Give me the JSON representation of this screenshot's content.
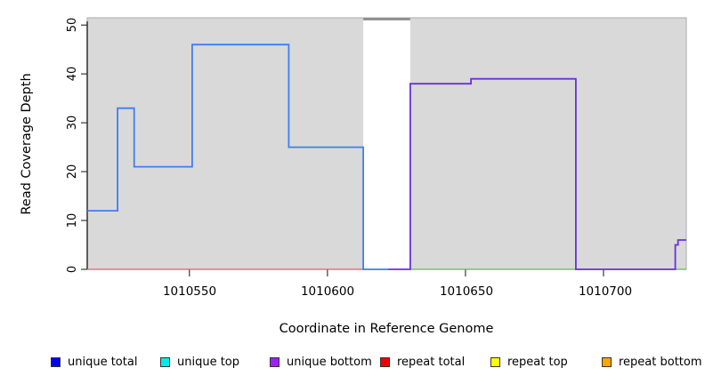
{
  "chart_data": {
    "type": "step-line",
    "title": "",
    "xlabel": "Coordinate in Reference Genome",
    "ylabel": "Read Coverage Depth",
    "xlim": [
      1010513,
      1010730
    ],
    "ylim": [
      0,
      51.5
    ],
    "xticks": [
      1010550,
      1010600,
      1010650,
      1010700
    ],
    "yticks": [
      0,
      10,
      20,
      30,
      40,
      50
    ],
    "grid": false,
    "panel_background": "#d9d9d9",
    "offscale_band": {
      "start": 1010613,
      "end": 1010630,
      "fill": "#ffffff"
    },
    "series": [
      {
        "name": "repeat total baseline",
        "color": "#e05c6e",
        "width": 1.3,
        "points": [
          [
            1010513,
            0
          ],
          [
            1010613,
            0
          ]
        ]
      },
      {
        "name": "green baseline",
        "color": "#5fb75f",
        "width": 1.3,
        "points": [
          [
            1010630,
            0
          ],
          [
            1010730,
            0
          ]
        ]
      },
      {
        "name": "offscale coverage clipped",
        "color": "#8c8c8c",
        "width": 2.6,
        "points": [
          [
            1010613,
            51.2
          ],
          [
            1010630,
            51.2
          ]
        ]
      },
      {
        "name": "unique total",
        "color": "#3f7ef0",
        "width": 1.8,
        "points": [
          [
            1010513,
            12
          ],
          [
            1010524,
            12
          ],
          [
            1010524,
            33
          ],
          [
            1010530,
            33
          ],
          [
            1010530,
            21
          ],
          [
            1010551,
            21
          ],
          [
            1010551,
            46
          ],
          [
            1010586,
            46
          ],
          [
            1010586,
            25
          ],
          [
            1010613,
            25
          ],
          [
            1010613,
            0
          ],
          [
            1010622,
            0
          ]
        ]
      },
      {
        "name": "unique bottom",
        "color": "#6a30dd",
        "width": 1.8,
        "points": [
          [
            1010622,
            0
          ],
          [
            1010630,
            0
          ],
          [
            1010630,
            38
          ],
          [
            1010652,
            38
          ],
          [
            1010652,
            39
          ],
          [
            1010690,
            39
          ],
          [
            1010690,
            0
          ],
          [
            1010726,
            0
          ],
          [
            1010726,
            5
          ],
          [
            1010727,
            5
          ],
          [
            1010727,
            6
          ],
          [
            1010730,
            6
          ]
        ]
      }
    ],
    "legend_position": "bottom"
  },
  "legend": {
    "items": [
      {
        "label": "unique total",
        "color": "#0000f5"
      },
      {
        "label": "unique top",
        "color": "#00eaea"
      },
      {
        "label": "unique bottom",
        "color": "#a020f0"
      },
      {
        "label": "repeat total",
        "color": "#f00000"
      },
      {
        "label": "repeat top",
        "color": "#ffff00"
      },
      {
        "label": "repeat bottom",
        "color": "#ffa500"
      }
    ]
  },
  "axes": {
    "x_title": "Coordinate in Reference Genome",
    "y_title": "Read Coverage Depth"
  }
}
